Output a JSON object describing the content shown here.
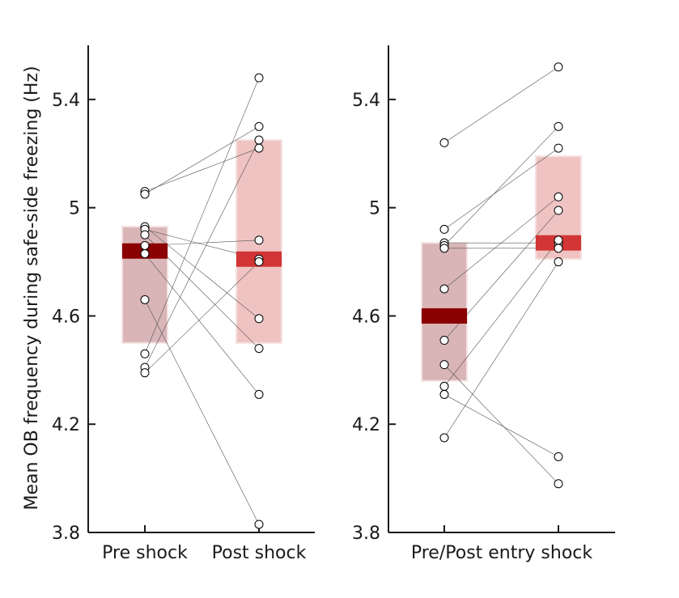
{
  "chart_data": [
    {
      "type": "scatter",
      "panel": "left",
      "ylabel": "Mean OB frequency during safe-side freezing (Hz)",
      "xlabel": "",
      "categories": [
        "Pre shock",
        "Post shock"
      ],
      "ylim": [
        3.8,
        5.6
      ],
      "yticks": [
        3.8,
        4.2,
        4.6,
        5,
        5.4
      ],
      "ytick_labels": [
        "3.8",
        "4.2",
        "4.6",
        "5",
        "5.4"
      ],
      "grid": false,
      "groups": [
        {
          "category": "Pre shock",
          "mean": 4.84,
          "band": [
            4.5,
            4.93
          ],
          "mean_color": "#8b0000",
          "band_color": "#d9b5b7"
        },
        {
          "category": "Post shock",
          "mean": 4.81,
          "band": [
            4.5,
            5.25
          ],
          "mean_color": "#d13535",
          "band_color": "#f0c3c3"
        }
      ],
      "pairs": [
        [
          5.06,
          5.22
        ],
        [
          5.05,
          5.3
        ],
        [
          4.93,
          4.59
        ],
        [
          4.92,
          4.81
        ],
        [
          4.9,
          4.48
        ],
        [
          4.86,
          4.88
        ],
        [
          4.83,
          4.31
        ],
        [
          4.66,
          3.83
        ],
        [
          4.46,
          5.48
        ],
        [
          4.41,
          5.25
        ],
        [
          4.39,
          4.8
        ]
      ]
    },
    {
      "type": "scatter",
      "panel": "right",
      "xlabel": "Pre/Post entry shock",
      "categories": [
        "",
        ""
      ],
      "ylim": [
        3.8,
        5.6
      ],
      "yticks": [
        3.8,
        4.2,
        4.6,
        5,
        5.4
      ],
      "ytick_labels": [
        "3.8",
        "4.2",
        "4.6",
        "5",
        "5.4"
      ],
      "grid": false,
      "groups": [
        {
          "category": "Pre",
          "mean": 4.6,
          "band": [
            4.36,
            4.87
          ],
          "mean_color": "#8b0000",
          "band_color": "#d9b5b7"
        },
        {
          "category": "Post",
          "mean": 4.87,
          "band": [
            4.81,
            5.19
          ],
          "mean_color": "#d13535",
          "band_color": "#f0c3c3"
        }
      ],
      "pairs": [
        [
          5.24,
          5.52
        ],
        [
          4.92,
          5.22
        ],
        [
          4.87,
          4.87
        ],
        [
          4.86,
          5.3
        ],
        [
          4.85,
          4.85
        ],
        [
          4.7,
          5.04
        ],
        [
          4.51,
          4.99
        ],
        [
          4.42,
          3.98
        ],
        [
          4.34,
          4.88
        ],
        [
          4.31,
          4.08
        ],
        [
          4.15,
          4.8
        ]
      ]
    }
  ]
}
